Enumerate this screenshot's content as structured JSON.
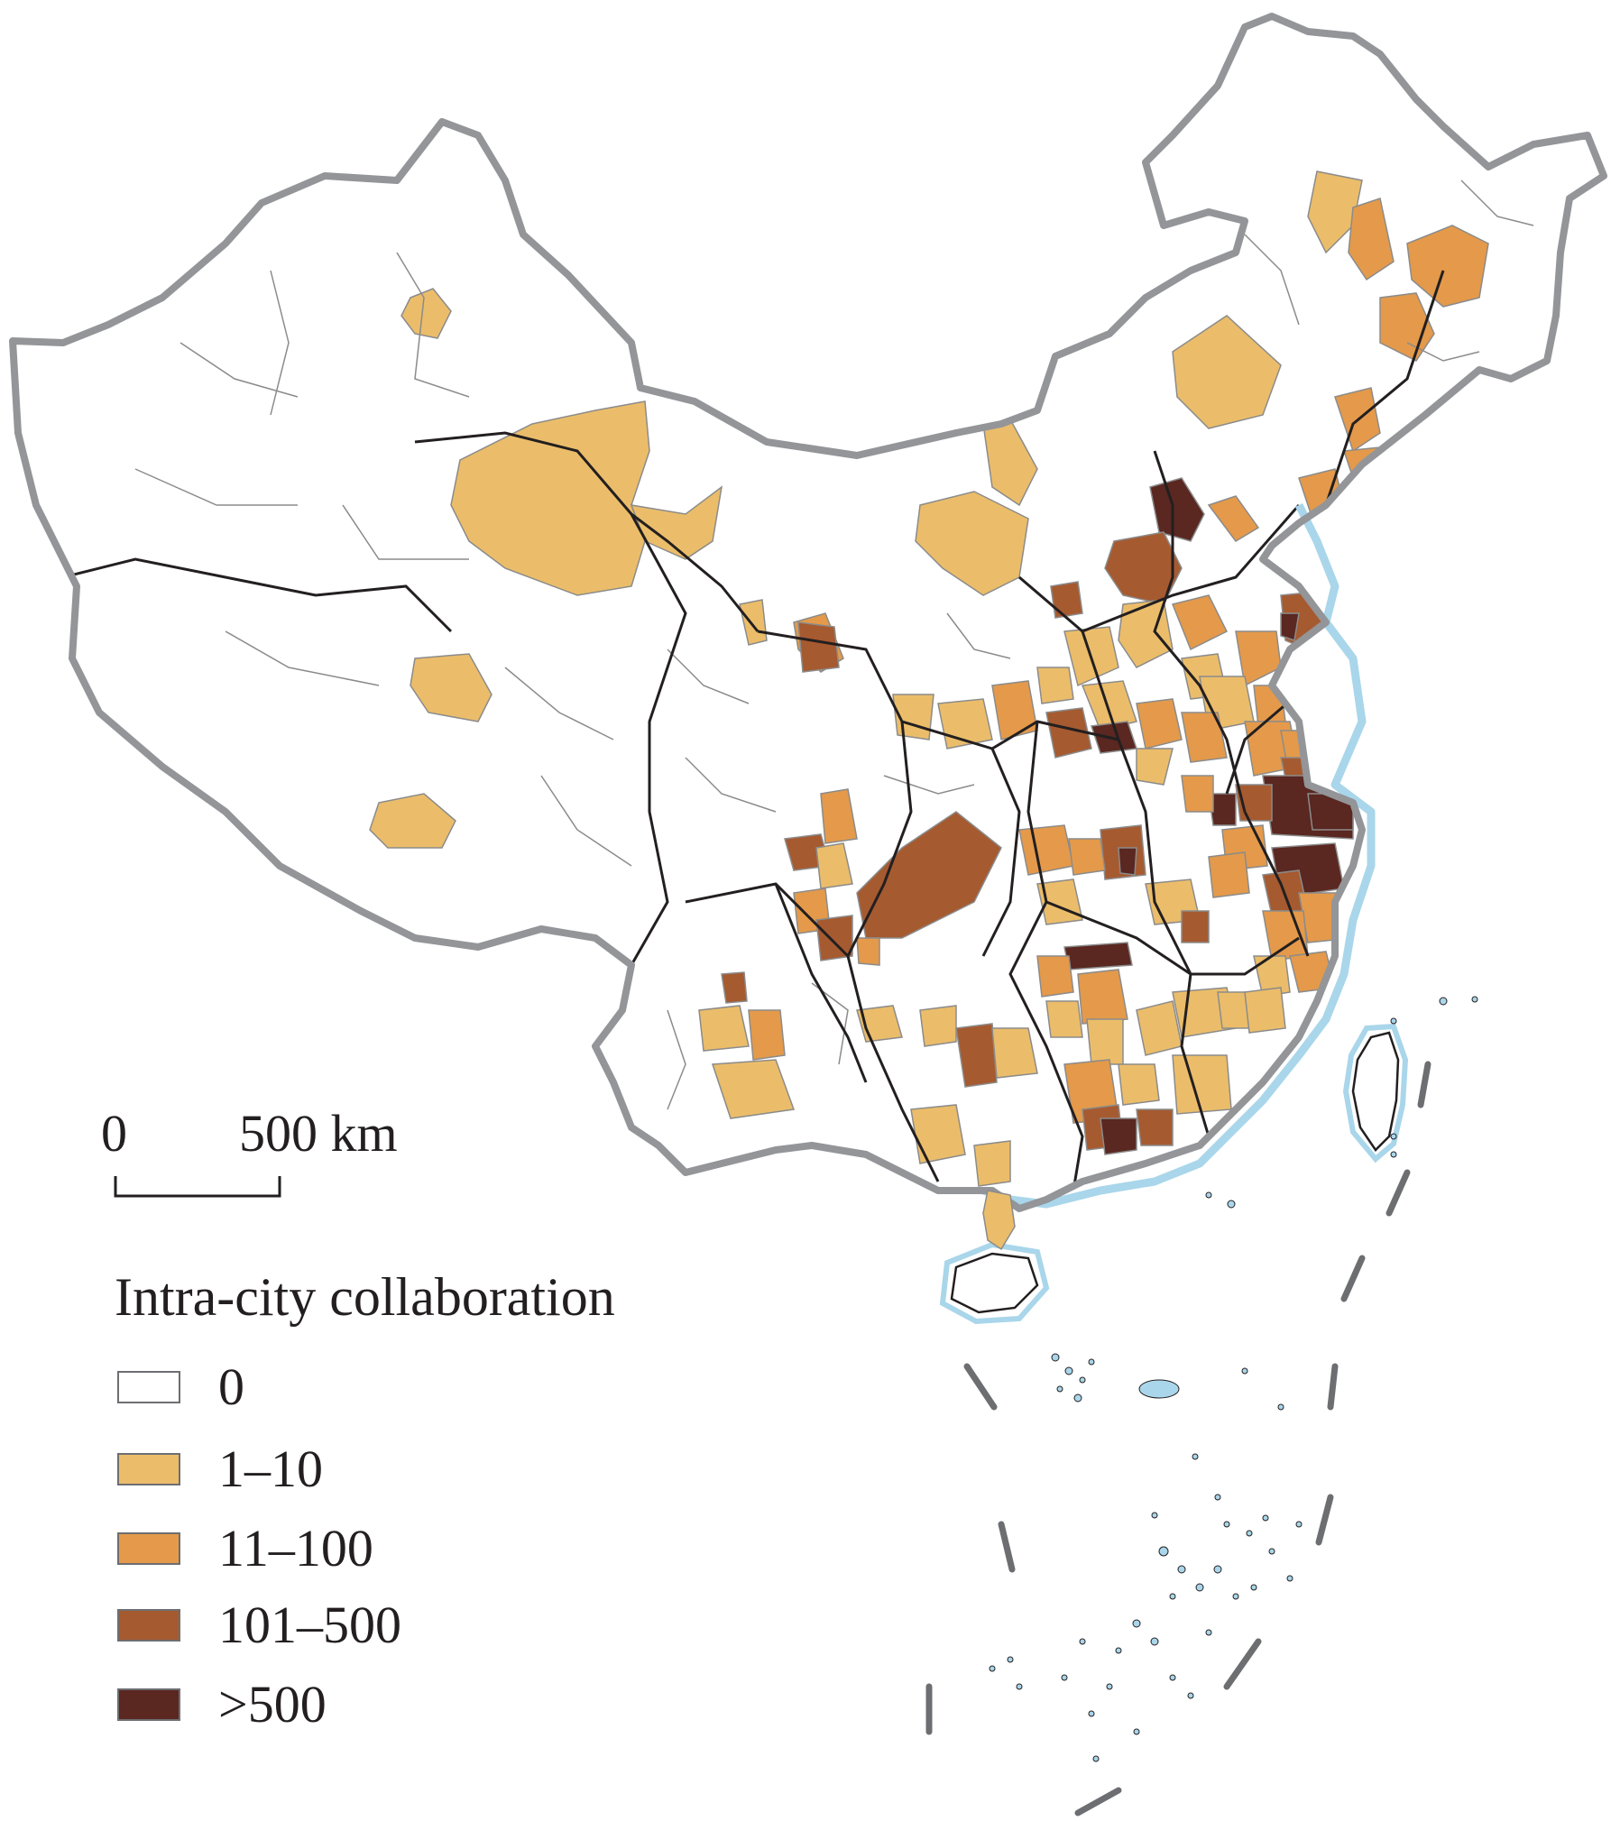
{
  "map": {
    "scale_bar": {
      "zero_label": "0",
      "distance_label": "500 km"
    },
    "legend": {
      "title": "Intra-city collaboration",
      "classes": [
        {
          "label": "0",
          "color": "#ffffff"
        },
        {
          "label": "1–10",
          "color": "#ebbd6a"
        },
        {
          "label": "11–100",
          "color": "#e49a4a"
        },
        {
          "label": "101–500",
          "color": "#a65a30"
        },
        {
          "label": ">500",
          "color": "#5a2721"
        }
      ]
    },
    "colors": {
      "national_border": "#939598",
      "province_border": "#231f20",
      "city_border": "#8b8b8b",
      "coast_halo": "#a9d6ea",
      "background": "#ffffff"
    }
  }
}
